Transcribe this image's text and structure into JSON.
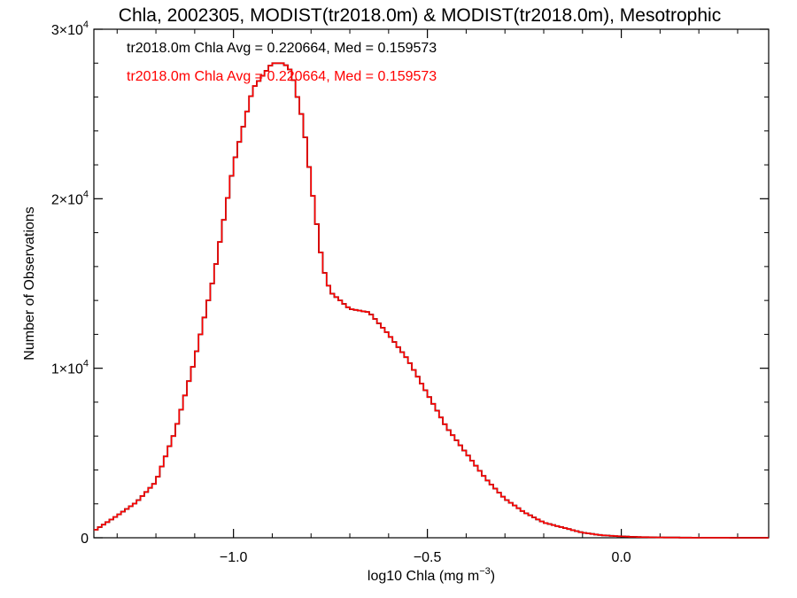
{
  "chart_data": {
    "type": "histogram-step",
    "title": "Chla, 2002305, MODIST(tr2018.0m) & MODIST(tr2018.0m), Mesotrophic",
    "xlabel": {
      "base": "log10 Chla (mg m",
      "sup": "−3",
      "close": ")"
    },
    "ylabel": "Number of Observations",
    "xlim": [
      -1.36,
      0.38
    ],
    "ylim": [
      0,
      30000
    ],
    "x_ticks": [
      {
        "value": -1.0,
        "label": "−1.0"
      },
      {
        "value": -0.5,
        "label": "−0.5"
      },
      {
        "value": 0.0,
        "label": "0.0"
      }
    ],
    "y_ticks": [
      {
        "value": 0,
        "base": "0",
        "sup": ""
      },
      {
        "value": 10000,
        "base": "1×10",
        "sup": "4"
      },
      {
        "value": 20000,
        "base": "2×10",
        "sup": "4"
      },
      {
        "value": 30000,
        "base": "3×10",
        "sup": "4"
      }
    ],
    "annotations": [
      {
        "text": "tr2018.0m Chla Avg = 0.220664, Med = 0.159573",
        "color": "#000000"
      },
      {
        "text": "tr2018.0m Chla Avg = 0.220664, Med = 0.159573",
        "color": "#ff0000"
      }
    ],
    "series": [
      {
        "color": "#000000",
        "x": [
          -1.36,
          -1.3,
          -1.25,
          -1.2,
          -1.15,
          -1.1,
          -1.05,
          -1.0,
          -0.95,
          -0.9,
          -0.87,
          -0.85,
          -0.82,
          -0.8,
          -0.77,
          -0.75,
          -0.7,
          -0.65,
          -0.6,
          -0.55,
          -0.5,
          -0.45,
          -0.4,
          -0.35,
          -0.3,
          -0.25,
          -0.2,
          -0.15,
          -0.1,
          -0.05,
          0.0,
          0.05,
          0.1,
          0.2,
          0.3,
          0.38
        ],
        "y": [
          400,
          1300,
          2100,
          3300,
          6300,
          10500,
          15500,
          22000,
          26500,
          28000,
          28000,
          27500,
          24500,
          21000,
          16000,
          14500,
          13500,
          13300,
          12000,
          10500,
          8500,
          6500,
          5000,
          3500,
          2300,
          1500,
          900,
          600,
          300,
          150,
          80,
          40,
          20,
          5,
          2,
          0
        ]
      },
      {
        "color": "#ff0000",
        "x": [
          -1.36,
          -1.3,
          -1.25,
          -1.2,
          -1.15,
          -1.1,
          -1.05,
          -1.0,
          -0.95,
          -0.9,
          -0.87,
          -0.85,
          -0.82,
          -0.8,
          -0.77,
          -0.75,
          -0.7,
          -0.65,
          -0.6,
          -0.55,
          -0.5,
          -0.45,
          -0.4,
          -0.35,
          -0.3,
          -0.25,
          -0.2,
          -0.15,
          -0.1,
          -0.05,
          0.0,
          0.05,
          0.1,
          0.2,
          0.3,
          0.38
        ],
        "y": [
          400,
          1300,
          2100,
          3300,
          6300,
          10500,
          15500,
          22000,
          26500,
          28000,
          28000,
          27500,
          24500,
          21000,
          16000,
          14500,
          13500,
          13300,
          12000,
          10500,
          8500,
          6500,
          5000,
          3500,
          2300,
          1500,
          900,
          600,
          300,
          150,
          80,
          40,
          20,
          5,
          2,
          0
        ]
      }
    ]
  }
}
